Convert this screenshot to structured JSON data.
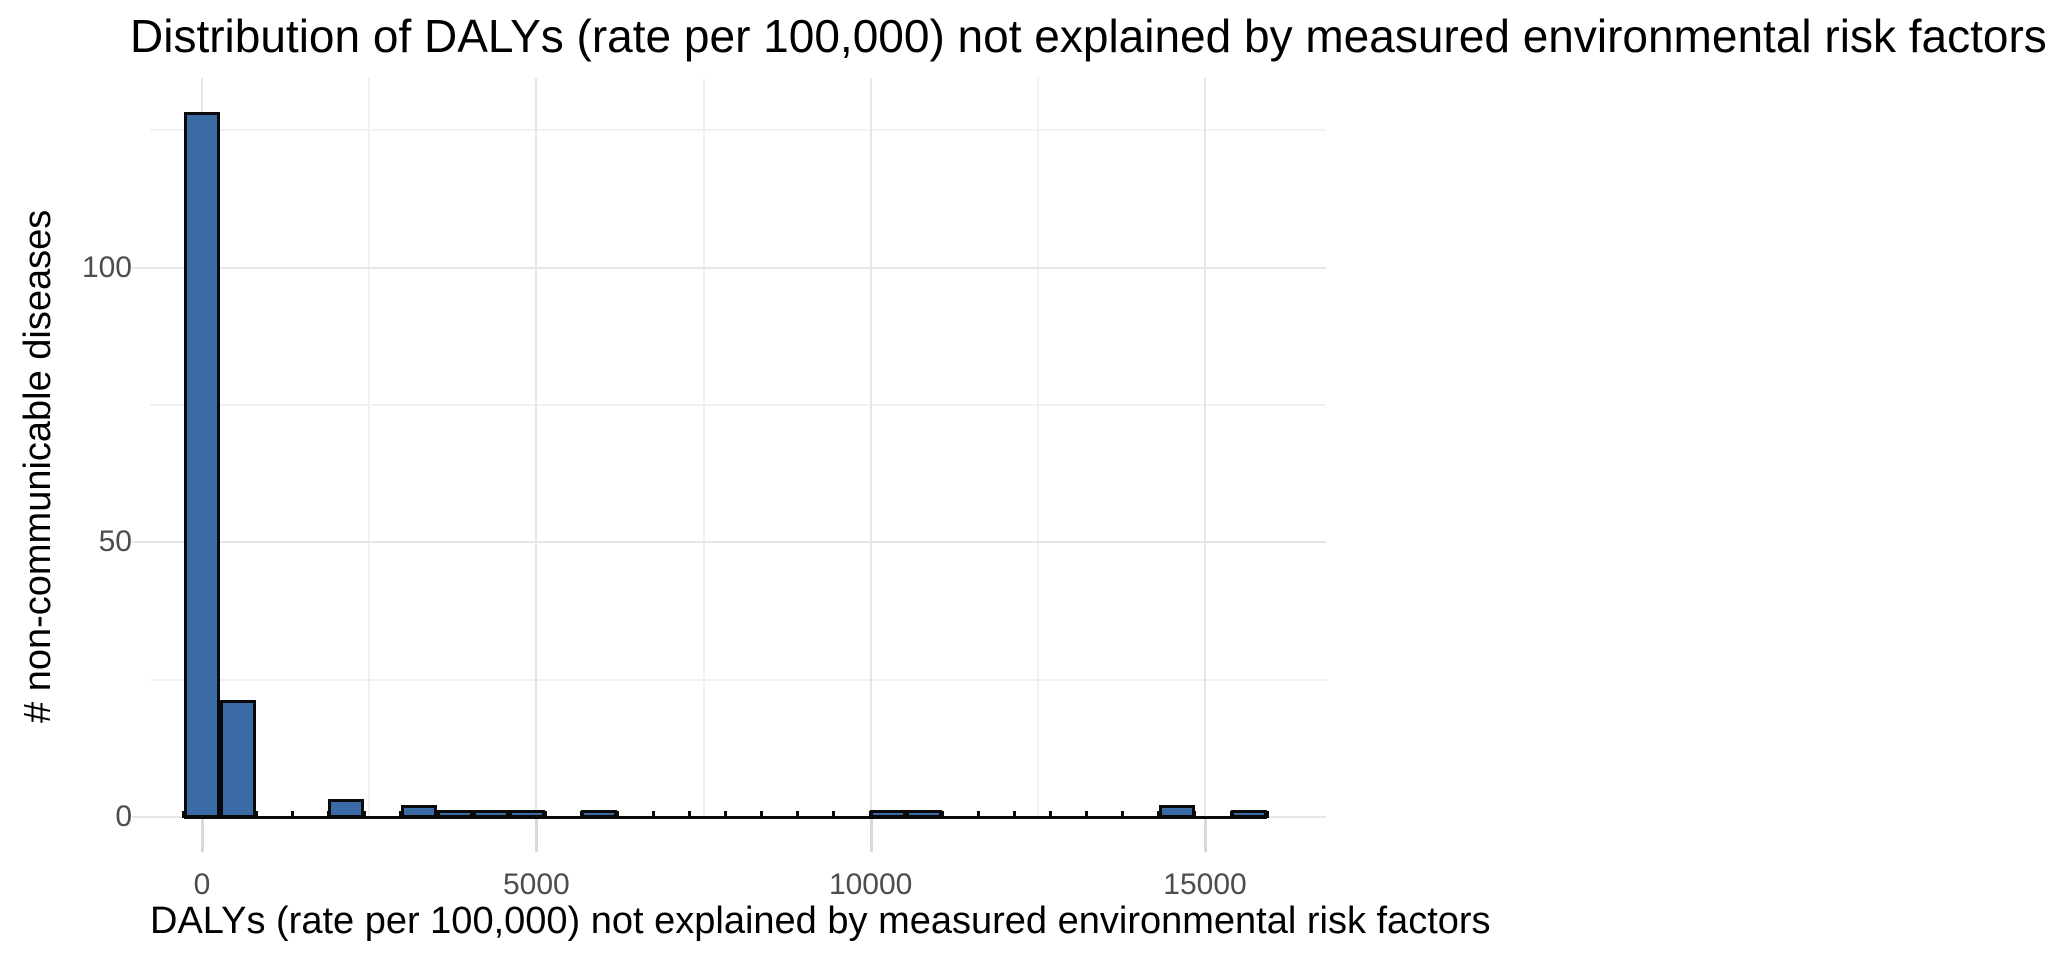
{
  "title": "Distribution of DALYs (rate per 100,000) not explained by measured environmental risk factors",
  "x_axis": {
    "title": "DALYs (rate per 100,000) not explained by measured environmental risk factors",
    "tick_labels": [
      "0",
      "5000",
      "10000",
      "15000"
    ],
    "tick_values": [
      0,
      5000,
      10000,
      15000
    ],
    "minor_gridlines": [
      2500,
      7500,
      12500
    ]
  },
  "y_axis": {
    "title": "# non-communicable diseases",
    "tick_labels": [
      "0",
      "50",
      "100"
    ],
    "tick_values": [
      0,
      50,
      100
    ],
    "minor_gridlines": [
      25,
      75,
      125
    ]
  },
  "chart_data": {
    "type": "bar",
    "subtype": "histogram",
    "title": "Distribution of DALYs (rate per 100,000) not explained by measured environmental risk factors",
    "xlabel": "DALYs (rate per 100,000) not explained by measured environmental risk factors",
    "ylabel": "# non-communicable diseases",
    "bin_width": 540,
    "bin_centers": [
      0,
      540,
      1080,
      1620,
      2160,
      2700,
      3240,
      3780,
      4320,
      4860,
      5400,
      5940,
      6480,
      7020,
      7560,
      8100,
      8640,
      9180,
      9720,
      10260,
      10800,
      11340,
      11880,
      12420,
      12960,
      13500,
      14040,
      14580,
      15120,
      15660
    ],
    "counts": [
      128,
      21,
      0,
      0,
      3,
      0,
      2,
      1,
      1,
      1,
      0,
      1,
      0,
      0,
      0,
      0,
      0,
      0,
      0,
      1,
      1,
      0,
      0,
      0,
      0,
      0,
      0,
      2,
      0,
      1
    ],
    "xlim": [
      -780,
      16820
    ],
    "ylim": [
      0,
      134.5
    ],
    "x_ticks": [
      0,
      5000,
      10000,
      15000
    ],
    "y_ticks": [
      0,
      50,
      100
    ],
    "grid": "major and minor, light gray on white",
    "legend": "none",
    "bar_fill": "#3a6ba5",
    "bar_stroke": "#0a0a0a"
  },
  "colors": {
    "background": "#ffffff",
    "bar_fill": "#3a6ba5",
    "bar_stroke": "#0a0a0a",
    "grid_major": "#e6e6e6",
    "grid_minor": "#f1f1f1",
    "axis_tick": "#d9d9d9",
    "tick_label_text": "#4d4d4d",
    "title_text": "#000000"
  }
}
